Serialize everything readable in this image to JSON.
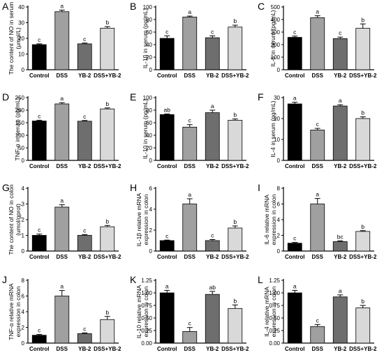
{
  "colors": {
    "Control": "#000000",
    "DSS": "#a0a0a0",
    "YB-2": "#6e6e6e",
    "DSS+YB-2": "#d9d9d9",
    "axis": "#000000"
  },
  "chart_data": [
    {
      "panel": "A",
      "type": "bar",
      "ylabel_lines": [
        "The content of NO in serum",
        "(μmol/L)"
      ],
      "categories": [
        "Control",
        "DSS",
        "YB-2",
        "DSS+YB-2"
      ],
      "values": [
        16,
        37,
        16.5,
        26.5
      ],
      "errors": [
        0.5,
        1.0,
        0.5,
        1.0
      ],
      "letters": [
        "c",
        "a",
        "c",
        "b"
      ],
      "ylim": [
        0,
        40
      ],
      "ticks": [
        0,
        10,
        20,
        30,
        40
      ]
    },
    {
      "panel": "B",
      "type": "bar",
      "ylabel_lines": [
        "IL-1β in serum (pg/mL)"
      ],
      "categories": [
        "Control",
        "DSS",
        "YB-2",
        "DSS+YB-2"
      ],
      "values": [
        50,
        84,
        51,
        68
      ],
      "errors": [
        4,
        1.5,
        3,
        3
      ],
      "letters": [
        "c",
        "a",
        "c",
        "b"
      ],
      "ylim": [
        0,
        100
      ],
      "ticks": [
        0,
        20,
        40,
        60,
        80,
        100
      ]
    },
    {
      "panel": "C",
      "type": "bar",
      "ylabel_lines": [
        "IL-6 in serum (pg/mL)"
      ],
      "categories": [
        "Control",
        "DSS",
        "YB-2",
        "DSS+YB-2"
      ],
      "values": [
        258,
        415,
        248,
        330
      ],
      "errors": [
        10,
        15,
        12,
        35
      ],
      "letters": [
        "c",
        "a",
        "c",
        "b"
      ],
      "ylim": [
        0,
        500
      ],
      "ticks": [
        0,
        100,
        200,
        300,
        400,
        500
      ]
    },
    {
      "panel": "D",
      "type": "bar",
      "ylabel_lines": [
        "TNF-α in serum (pg/mL)"
      ],
      "categories": [
        "Control",
        "DSS",
        "YB-2",
        "DSS+YB-2"
      ],
      "values": [
        157,
        225,
        156,
        205
      ],
      "errors": [
        3,
        5,
        3,
        4
      ],
      "letters": [
        "c",
        "a",
        "c",
        "b"
      ],
      "ylim": [
        0,
        250
      ],
      "ticks": [
        0,
        50,
        100,
        150,
        200,
        250
      ]
    },
    {
      "panel": "E",
      "type": "bar",
      "ylabel_lines": [
        "IL-10 in serum (pg/mL)"
      ],
      "categories": [
        "Control",
        "DSS",
        "YB-2",
        "DSS+YB-2"
      ],
      "values": [
        73,
        53,
        76,
        64
      ],
      "errors": [
        1,
        4,
        4,
        2
      ],
      "letters": [
        "ab",
        "c",
        "a",
        "b"
      ],
      "ylim": [
        0,
        100
      ],
      "ticks": [
        0,
        20,
        40,
        60,
        80,
        100
      ]
    },
    {
      "panel": "F",
      "type": "bar",
      "ylabel_lines": [
        "IL-4 in serum (pg/mL)"
      ],
      "categories": [
        "Control",
        "DSS",
        "YB-2",
        "DSS+YB-2"
      ],
      "values": [
        27,
        14.5,
        26,
        20
      ],
      "errors": [
        0.8,
        0.8,
        0.6,
        0.8
      ],
      "letters": [
        "a",
        "c",
        "a",
        "b"
      ],
      "ylim": [
        0,
        30
      ],
      "ticks": [
        0,
        10,
        20,
        30
      ]
    },
    {
      "panel": "G",
      "type": "bar",
      "ylabel_lines": [
        "The content of NO in colon",
        "(umol/gprot)"
      ],
      "categories": [
        "Control",
        "DSS",
        "YB-2",
        "DSS+YB-2"
      ],
      "values": [
        1.0,
        2.8,
        1.0,
        1.55
      ],
      "errors": [
        0.08,
        0.15,
        0.05,
        0.08
      ],
      "letters": [
        "c",
        "a",
        "c",
        "b"
      ],
      "ylim": [
        0,
        4
      ],
      "ticks": [
        0,
        1,
        2,
        3,
        4
      ]
    },
    {
      "panel": "H",
      "type": "bar",
      "ylabel_lines": [
        "IL-1β relative mRNA",
        "expression in colon"
      ],
      "categories": [
        "Control",
        "DSS",
        "YB-2",
        "DSS+YB-2"
      ],
      "values": [
        1.0,
        4.5,
        1.0,
        2.2
      ],
      "errors": [
        0.05,
        0.5,
        0.1,
        0.2
      ],
      "letters": [
        "c",
        "a",
        "c",
        "b"
      ],
      "ylim": [
        0,
        6
      ],
      "ticks": [
        0,
        2,
        4,
        6
      ]
    },
    {
      "panel": "I",
      "type": "bar",
      "ylabel_lines": [
        "IL-6 relative mRNA",
        "expression in colon"
      ],
      "categories": [
        "Control",
        "DSS",
        "YB-2",
        "DSS+YB-2"
      ],
      "values": [
        1.0,
        6.0,
        1.2,
        2.5
      ],
      "errors": [
        0.1,
        0.7,
        0.1,
        0.1
      ],
      "letters": [
        "c",
        "a",
        "bc",
        "b"
      ],
      "ylim": [
        0,
        8
      ],
      "ticks": [
        0,
        2,
        4,
        6,
        8
      ]
    },
    {
      "panel": "J",
      "type": "bar",
      "ylabel_lines": [
        "TNF-α relative mRNA",
        "expression in colon"
      ],
      "categories": [
        "Control",
        "DSS",
        "YB-2",
        "DSS+YB-2"
      ],
      "values": [
        1.0,
        6.0,
        1.2,
        3.0
      ],
      "errors": [
        0.1,
        0.7,
        0.1,
        0.4
      ],
      "letters": [
        "c",
        "a",
        "c",
        "b"
      ],
      "ylim": [
        0,
        8
      ],
      "ticks": [
        0,
        2,
        4,
        6,
        8
      ]
    },
    {
      "panel": "K",
      "type": "bar",
      "ylabel_lines": [
        "IL-10 relative mRNA",
        "expression in colon"
      ],
      "categories": [
        "Control",
        "DSS",
        "YB-2",
        "DSS+YB-2"
      ],
      "values": [
        1.0,
        0.23,
        0.97,
        0.69
      ],
      "errors": [
        0.05,
        0.08,
        0.06,
        0.07
      ],
      "letters": [
        "a",
        "c",
        "ab",
        "b"
      ],
      "ylim": [
        0,
        1.25
      ],
      "ticks": [
        0.0,
        0.25,
        0.5,
        0.75,
        1.0,
        1.25
      ]
    },
    {
      "panel": "L",
      "type": "bar",
      "ylabel_lines": [
        "IL-4 relative mRNA",
        "expression in colon"
      ],
      "categories": [
        "Control",
        "DSS",
        "YB-2",
        "DSS+YB-2"
      ],
      "values": [
        1.0,
        0.33,
        0.92,
        0.7
      ],
      "errors": [
        0.05,
        0.04,
        0.04,
        0.05
      ],
      "letters": [
        "a",
        "c",
        "a",
        "b"
      ],
      "ylim": [
        0,
        1.25
      ],
      "ticks": [
        0.0,
        0.25,
        0.5,
        0.75,
        1.0,
        1.25
      ]
    }
  ]
}
